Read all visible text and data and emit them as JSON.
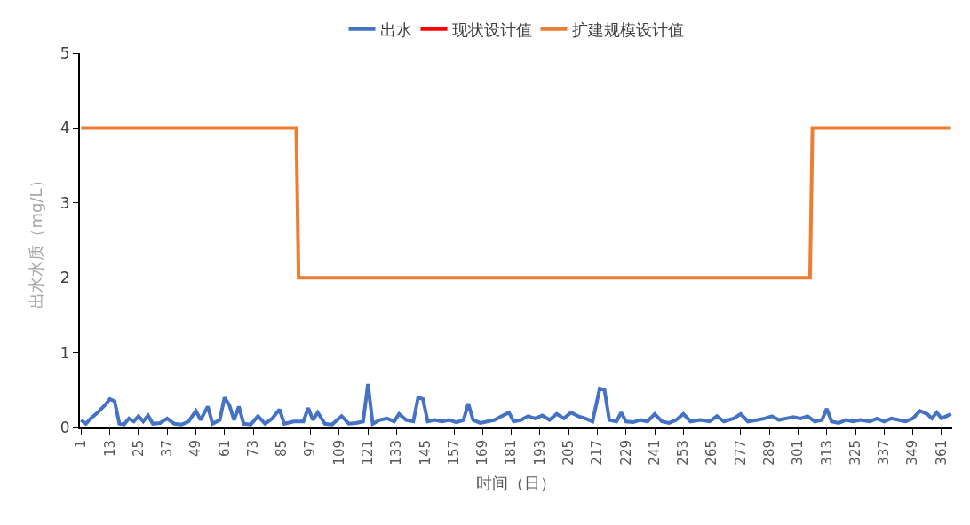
{
  "chart_data": {
    "type": "line",
    "xlabel": "时间（日）",
    "ylabel": "出水水质（mg/L）",
    "xlim": [
      0.5,
      365.5
    ],
    "xticks": [
      1,
      13,
      25,
      37,
      49,
      61,
      73,
      85,
      97,
      109,
      121,
      133,
      145,
      157,
      169,
      181,
      193,
      205,
      217,
      229,
      241,
      253,
      265,
      277,
      289,
      301,
      313,
      325,
      337,
      349,
      361
    ],
    "ylim": [
      0,
      5
    ],
    "yticks": [
      0,
      1,
      2,
      3,
      4,
      5
    ],
    "legend": "top",
    "marker": "none",
    "line_style": "solid",
    "series": [
      {
        "name": "出水",
        "color": "#4472c4",
        "x": [
          1,
          3,
          5,
          8,
          11,
          13,
          15,
          17,
          19,
          21,
          23,
          25,
          27,
          29,
          31,
          34,
          37,
          40,
          43,
          46,
          49,
          51,
          54,
          56,
          59,
          61,
          63,
          65,
          67,
          69,
          72,
          75,
          78,
          81,
          84,
          86,
          90,
          94,
          96,
          98,
          100,
          103,
          106,
          110,
          113,
          116,
          119,
          121,
          123,
          126,
          129,
          132,
          134,
          137,
          140,
          142,
          144,
          146,
          149,
          152,
          155,
          158,
          161,
          163,
          165,
          168,
          171,
          174,
          177,
          180,
          182,
          185,
          188,
          191,
          194,
          197,
          200,
          203,
          206,
          209,
          212,
          215,
          218,
          220,
          222,
          225,
          227,
          229,
          232,
          235,
          238,
          241,
          244,
          247,
          250,
          253,
          256,
          260,
          264,
          267,
          270,
          274,
          277,
          280,
          284,
          287,
          290,
          293,
          296,
          299,
          302,
          305,
          308,
          311,
          313,
          315,
          318,
          321,
          324,
          327,
          331,
          334,
          337,
          340,
          343,
          346,
          349,
          352,
          355,
          357,
          359,
          361,
          363,
          365
        ],
        "values": [
          0.1,
          0.05,
          0.12,
          0.2,
          0.3,
          0.38,
          0.35,
          0.05,
          0.04,
          0.12,
          0.08,
          0.15,
          0.08,
          0.16,
          0.05,
          0.06,
          0.12,
          0.05,
          0.04,
          0.08,
          0.22,
          0.1,
          0.28,
          0.05,
          0.1,
          0.4,
          0.3,
          0.1,
          0.28,
          0.05,
          0.04,
          0.15,
          0.05,
          0.12,
          0.24,
          0.05,
          0.08,
          0.08,
          0.26,
          0.1,
          0.2,
          0.05,
          0.04,
          0.15,
          0.05,
          0.06,
          0.08,
          0.58,
          0.05,
          0.1,
          0.12,
          0.08,
          0.18,
          0.1,
          0.08,
          0.4,
          0.38,
          0.08,
          0.1,
          0.08,
          0.1,
          0.07,
          0.1,
          0.32,
          0.1,
          0.06,
          0.08,
          0.1,
          0.15,
          0.2,
          0.08,
          0.1,
          0.15,
          0.12,
          0.16,
          0.1,
          0.18,
          0.12,
          0.2,
          0.15,
          0.12,
          0.08,
          0.52,
          0.5,
          0.1,
          0.08,
          0.2,
          0.08,
          0.07,
          0.1,
          0.08,
          0.18,
          0.08,
          0.06,
          0.1,
          0.18,
          0.08,
          0.1,
          0.08,
          0.15,
          0.08,
          0.12,
          0.18,
          0.08,
          0.1,
          0.12,
          0.15,
          0.1,
          0.12,
          0.14,
          0.12,
          0.15,
          0.08,
          0.1,
          0.25,
          0.08,
          0.06,
          0.1,
          0.08,
          0.1,
          0.08,
          0.12,
          0.08,
          0.12,
          0.1,
          0.08,
          0.12,
          0.22,
          0.18,
          0.12,
          0.2,
          0.12,
          0.15,
          0.18
        ]
      },
      {
        "name": "现状设计值",
        "color": "#ff0000",
        "values": [
          null
        ]
      },
      {
        "name": "扩建规模设计值",
        "color": "#ed7d31",
        "x": [
          1,
          91,
          92,
          306,
          307,
          365
        ],
        "values": [
          4,
          4,
          2,
          2,
          4,
          4
        ]
      }
    ]
  }
}
